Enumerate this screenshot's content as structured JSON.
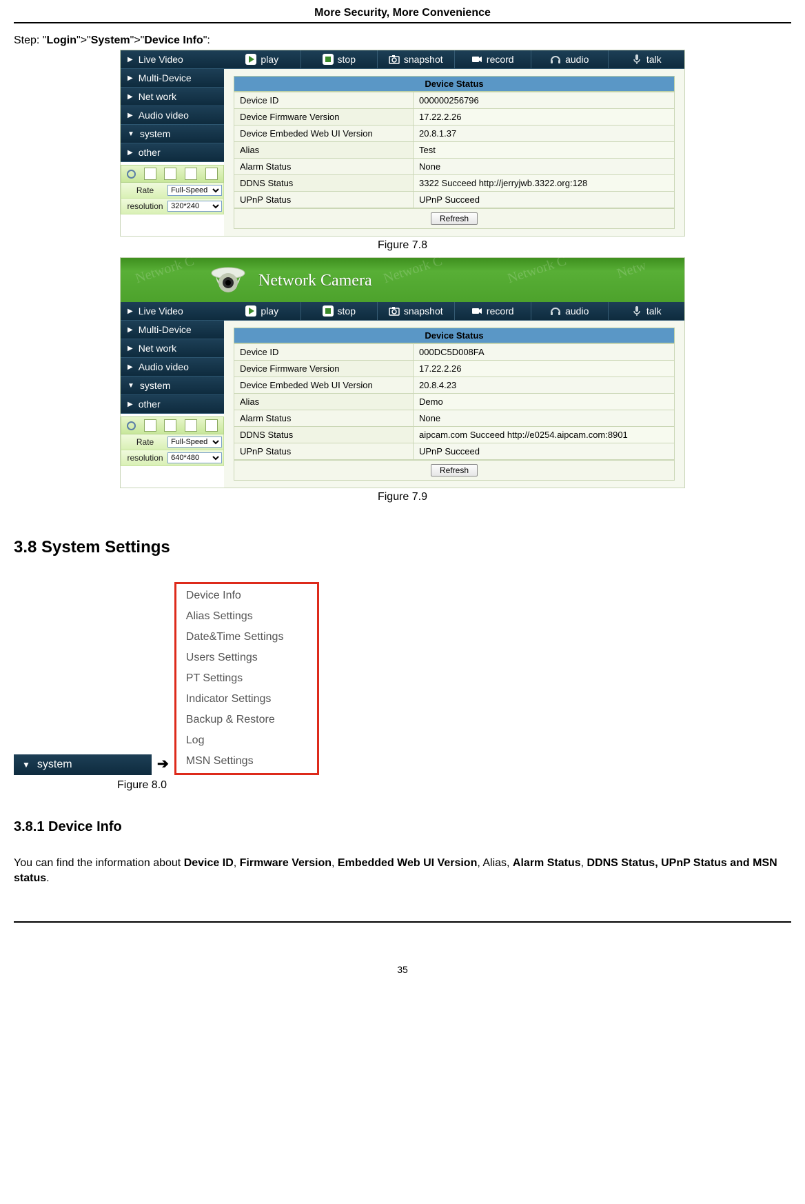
{
  "page": {
    "header_title": "More Security, More Convenience",
    "page_number": "35"
  },
  "step_line": {
    "prefix": "Step: \"",
    "p1": "Login",
    "sep1": "\">\"",
    "p2": "System",
    "sep2": "\">\"",
    "p3": "Device Info",
    "suffix": "\":"
  },
  "toolbar": {
    "play": "play",
    "stop": "stop",
    "snapshot": "snapshot",
    "record": "record",
    "audio": "audio",
    "talk": "talk"
  },
  "sidebar": {
    "items": [
      {
        "label": "Live Video",
        "chev": "▶"
      },
      {
        "label": "Multi-Device",
        "chev": "▶"
      },
      {
        "label": "Net work",
        "chev": "▶"
      },
      {
        "label": "Audio video",
        "chev": "▶"
      },
      {
        "label": "system",
        "chev": "▼"
      },
      {
        "label": "other",
        "chev": "▶"
      }
    ],
    "rate_label": "Rate",
    "resolution_label": "resolution"
  },
  "fig78": {
    "caption": "Figure 7.8",
    "status_title": "Device Status",
    "rate_value": "Full-Speed",
    "resolution_value": "320*240",
    "rows": [
      {
        "k": "Device ID",
        "v": "000000256796"
      },
      {
        "k": "Device Firmware Version",
        "v": "17.22.2.26"
      },
      {
        "k": "Device Embeded Web UI Version",
        "v": "20.8.1.37"
      },
      {
        "k": "Alias",
        "v": "Test"
      },
      {
        "k": "Alarm Status",
        "v": "None"
      },
      {
        "k": "DDNS Status",
        "v": "3322 Succeed  http://jerryjwb.3322.org:128"
      },
      {
        "k": "UPnP Status",
        "v": "UPnP Succeed"
      }
    ],
    "refresh": "Refresh"
  },
  "fig79": {
    "caption": "Figure 7.9",
    "header_title": "Network Camera",
    "status_title": "Device Status",
    "rate_value": "Full-Speed",
    "resolution_value": "640*480",
    "rows": [
      {
        "k": "Device ID",
        "v": "000DC5D008FA"
      },
      {
        "k": "Device Firmware Version",
        "v": "17.22.2.26"
      },
      {
        "k": "Device Embeded Web UI Version",
        "v": "20.8.4.23"
      },
      {
        "k": "Alias",
        "v": "Demo"
      },
      {
        "k": "Alarm Status",
        "v": "None"
      },
      {
        "k": "DDNS Status",
        "v": "aipcam.com  Succeed  http://e0254.aipcam.com:8901"
      },
      {
        "k": "UPnP Status",
        "v": "UPnP Succeed"
      }
    ],
    "refresh": "Refresh"
  },
  "sec38": {
    "heading": "3.8 System Settings",
    "system_label": "system",
    "arrow": "➔",
    "submenu": [
      "Device Info",
      "Alias Settings",
      "Date&Time Settings",
      "Users Settings",
      "PT Settings",
      "Indicator Settings",
      "Backup & Restore",
      "Log",
      "MSN Settings"
    ],
    "caption": "Figure 8.0"
  },
  "sec381": {
    "heading": "3.8.1 Device Info",
    "para_pre": "You can find the information about ",
    "b1": "Device ID",
    "c1": ", ",
    "b2": "Firmware Version",
    "c2": ", ",
    "b3": "Embedded Web UI Version",
    "c3": ", Alias, ",
    "b4": "Alarm Status",
    "c4": ", ",
    "b5": "DDNS Status, UPnP Status and MSN status",
    "suffix": "."
  },
  "colors": {
    "nav_bg_top": "#1d3f56",
    "nav_bg_bot": "#0e2b3e",
    "green_top": "#3e8f1e",
    "green_bot": "#4da22c",
    "status_header": "#5a97c6",
    "submenu_border": "#dd2a1b"
  }
}
